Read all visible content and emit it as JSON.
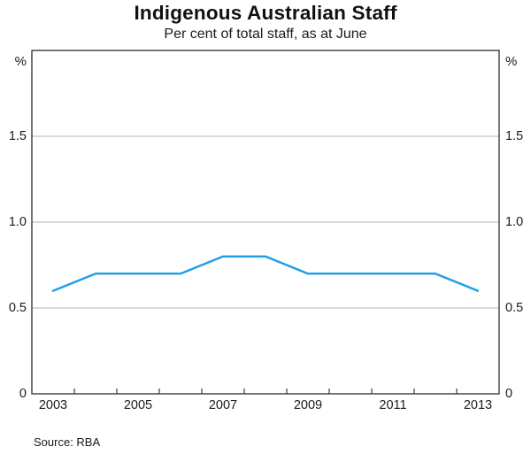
{
  "header": {
    "title": "Indigenous Australian Staff",
    "subtitle": "Per cent of total staff, as at June"
  },
  "footer": {
    "source": "Source: RBA"
  },
  "axes": {
    "left_unit": "%",
    "right_unit": "%",
    "y_tick_labels": [
      "1.5",
      "1.0",
      "0.5",
      "0"
    ],
    "y_tick_values": [
      1.5,
      1.0,
      0.5,
      0
    ],
    "x_tick_labels": [
      "2003",
      "2005",
      "2007",
      "2009",
      "2011",
      "2013"
    ],
    "x_tick_years": [
      2003,
      2005,
      2007,
      2009,
      2011,
      2013
    ]
  },
  "colors": {
    "line": "#1c9fe8",
    "frame": "#3a3a3a",
    "grid": "#b3b3b3",
    "text": "#1a1a1a"
  },
  "chart_data": {
    "type": "line",
    "title": "Indigenous Australian Staff",
    "subtitle": "Per cent of total staff, as at June",
    "x": [
      2003,
      2004,
      2005,
      2006,
      2007,
      2008,
      2009,
      2010,
      2011,
      2012,
      2013
    ],
    "series": [
      {
        "name": "Indigenous Australian staff, per cent of total staff",
        "values": [
          0.6,
          0.7,
          0.7,
          0.7,
          0.8,
          0.8,
          0.7,
          0.7,
          0.7,
          0.7,
          0.6
        ]
      }
    ],
    "xlabel": "",
    "ylabel": "%",
    "xlim": [
      2002.5,
      2013.5
    ],
    "ylim": [
      0,
      2.0
    ],
    "y_gridlines": [
      0.5,
      1.0,
      1.5
    ],
    "grid": true,
    "legend": false,
    "source": "RBA"
  }
}
